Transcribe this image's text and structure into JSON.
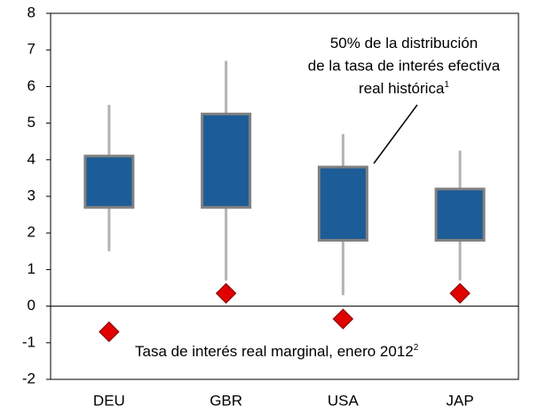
{
  "chart_data": {
    "type": "box",
    "categories": [
      "DEU",
      "GBR",
      "USA",
      "JAP"
    ],
    "boxes": {
      "min": [
        1.5,
        0.7,
        0.3,
        0.7
      ],
      "q1": [
        2.7,
        2.7,
        1.8,
        1.8
      ],
      "q3": [
        4.1,
        5.25,
        3.8,
        3.2
      ],
      "max": [
        5.5,
        6.7,
        4.7,
        4.25
      ],
      "color": "#1c5c97",
      "edge_color": "#808080",
      "whisker_color": "#b3b3b3"
    },
    "markers": {
      "values": [
        -0.7,
        0.35,
        -0.35,
        0.35
      ],
      "color": "#e00000"
    },
    "ylim": [
      -2,
      8
    ],
    "yticks": [
      -2,
      -1,
      0,
      1,
      2,
      3,
      4,
      5,
      6,
      7,
      8
    ],
    "annotations": [
      {
        "lines": [
          "50% de la distribución",
          "de la tasa de interés efectiva",
          "real histórica"
        ],
        "note": "1"
      },
      {
        "lines": [
          "Tasa de interés real marginal, enero 2012"
        ],
        "note": "2"
      }
    ]
  }
}
